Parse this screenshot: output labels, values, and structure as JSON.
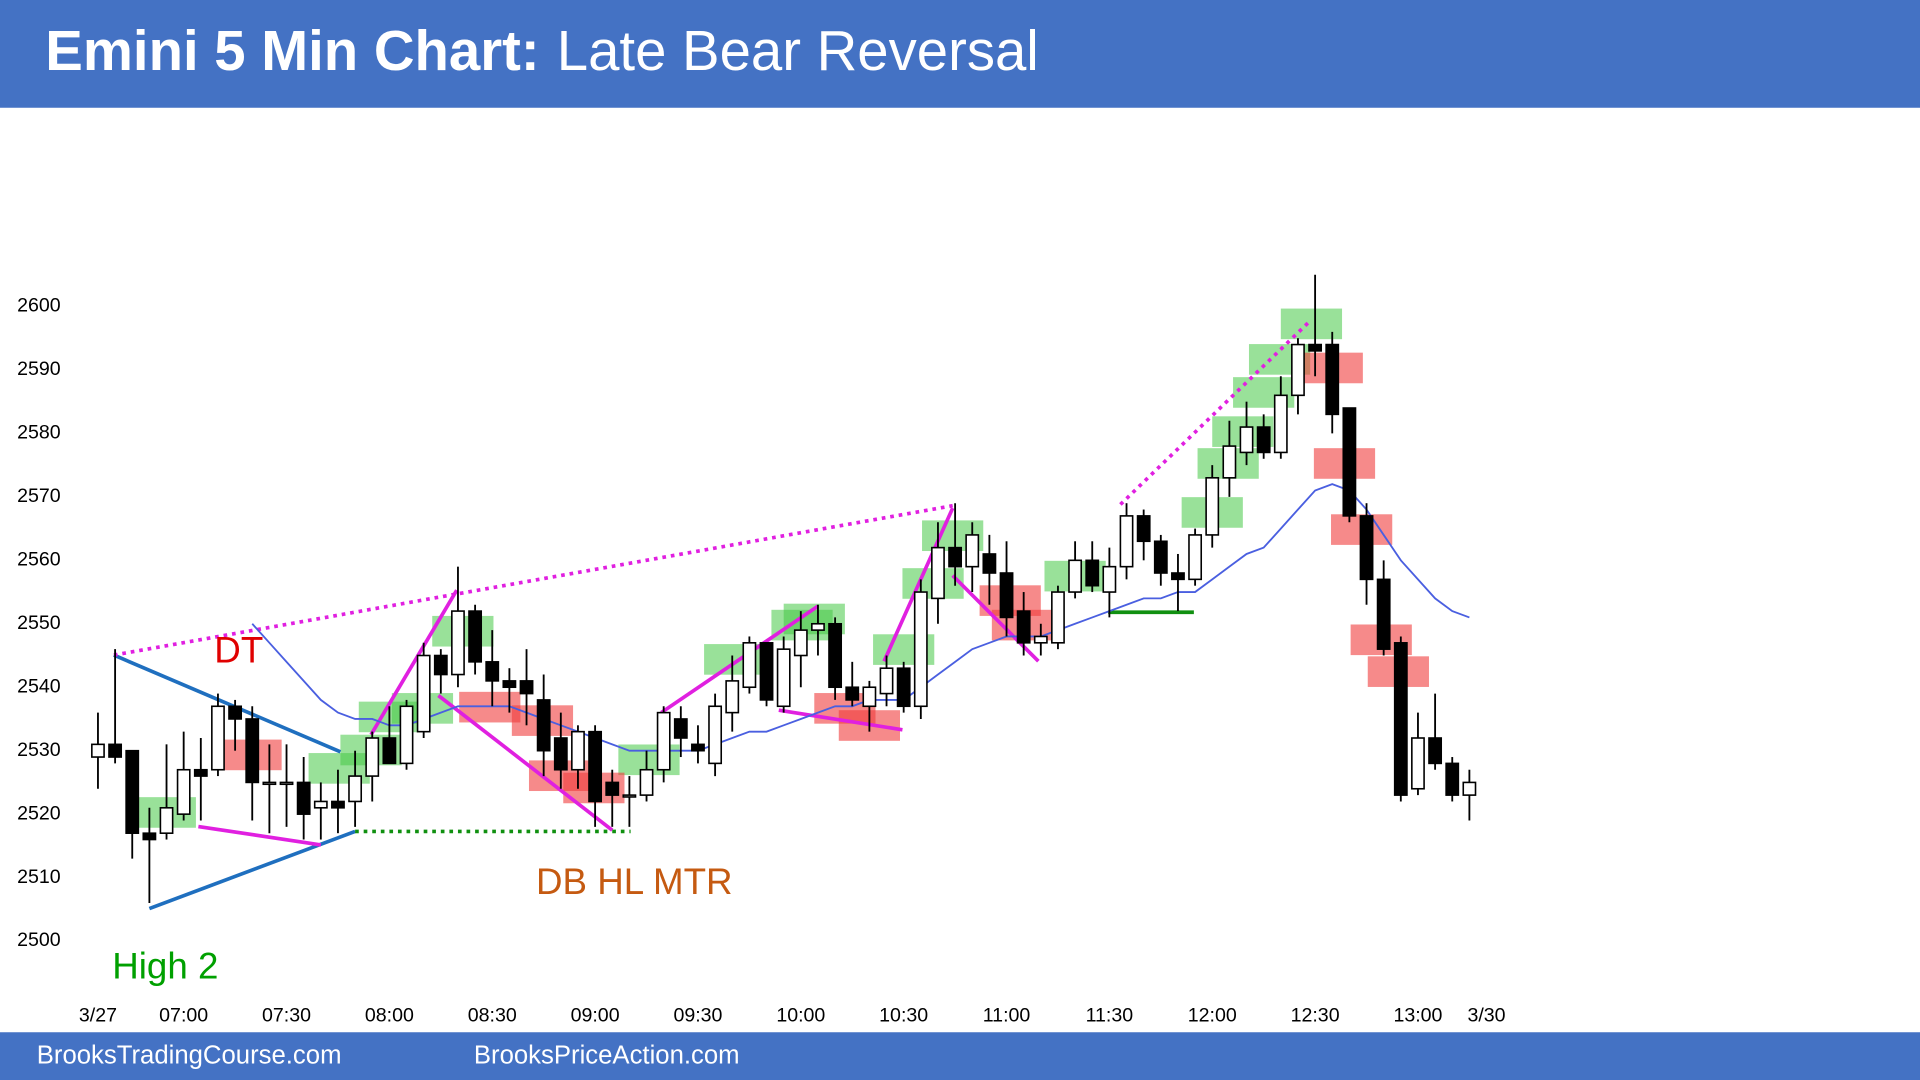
{
  "header": {
    "title_bold": "Emini 5 Min Chart:",
    "title_rest": "Late Bear Reversal"
  },
  "footer": {
    "left": "BrooksTradingCourse.com",
    "right": "BrooksPriceAction.com"
  },
  "chart_data": {
    "type": "candlestick",
    "categories": [
      "3/27",
      null,
      null,
      null,
      null,
      "07:00",
      null,
      null,
      null,
      null,
      null,
      "07:30",
      null,
      null,
      null,
      null,
      null,
      "08:00",
      null,
      null,
      null,
      null,
      null,
      "08:30",
      null,
      null,
      null,
      null,
      null,
      "09:00",
      null,
      null,
      null,
      null,
      null,
      "09:30",
      null,
      null,
      null,
      null,
      null,
      "10:00",
      null,
      null,
      null,
      null,
      null,
      "10:30",
      null,
      null,
      null,
      null,
      null,
      "11:00",
      null,
      null,
      null,
      null,
      null,
      "11:30",
      null,
      null,
      null,
      null,
      null,
      "12:00",
      null,
      null,
      null,
      null,
      null,
      "12:30",
      null,
      null,
      null,
      null,
      null,
      "13:00",
      null,
      null,
      null,
      "3/30"
    ],
    "open": [
      2529,
      2531,
      2530,
      2517,
      2517,
      2520,
      2527,
      2527,
      2537,
      2535,
      2525,
      2525,
      2525,
      2521,
      2522,
      2522,
      2526,
      2532,
      2528,
      2533,
      2545,
      2542,
      2552,
      2544,
      2541,
      2541,
      2538,
      2532,
      2527,
      2533,
      2525,
      2523,
      2523,
      2527,
      2535,
      2531,
      2528,
      2536,
      2540,
      2547,
      2537,
      2545,
      2549,
      2550,
      2540,
      2537,
      2539,
      2543,
      2537,
      2554,
      2562,
      2559,
      2561,
      2558,
      2552,
      2547,
      2547,
      2555,
      2560,
      2555,
      2559,
      2567,
      2563,
      2558,
      2557,
      2564,
      2573,
      2577,
      2581,
      2577,
      2586,
      2594,
      2594,
      2584,
      2567,
      2557,
      2547,
      2524,
      2532,
      2528,
      2523,
      null
    ],
    "high": [
      2536,
      2546,
      2530,
      2521,
      2531,
      2533,
      2532,
      2539,
      2538,
      2537,
      2531,
      2531,
      2529,
      2525,
      2527,
      2530,
      2533,
      2537,
      2538,
      2547,
      2546,
      2559,
      2553,
      2549,
      2543,
      2546,
      2542,
      2536,
      2534,
      2534,
      2527,
      2526,
      2530,
      2537,
      2537,
      2534,
      2539,
      2545,
      2548,
      2547,
      2548,
      2552,
      2553,
      2551,
      2544,
      2541,
      2545,
      2544,
      2557,
      2566,
      2569,
      2566,
      2564,
      2563,
      2555,
      2550,
      2556,
      2563,
      2563,
      2562,
      2569,
      2568,
      2564,
      2561,
      2565,
      2575,
      2582,
      2585,
      2583,
      2589,
      2595,
      2605,
      2596,
      2584,
      2569,
      2560,
      2548,
      2536,
      2539,
      2529,
      2527,
      null
    ],
    "low": [
      2524,
      2528,
      2513,
      2506,
      2516,
      2519,
      2519,
      2526,
      2530,
      2519,
      2517,
      2518,
      2516,
      2516,
      2517,
      2518,
      2522,
      2528,
      2527,
      2532,
      2539,
      2540,
      2542,
      2537,
      2536,
      2534,
      2526,
      2524,
      2524,
      2518,
      2518,
      2518,
      2522,
      2525,
      2529,
      2528,
      2526,
      2533,
      2539,
      2537,
      2536,
      2540,
      2545,
      2538,
      2537,
      2533,
      2537,
      2536,
      2535,
      2550,
      2556,
      2555,
      2553,
      2548,
      2545,
      2545,
      2546,
      2554,
      2555,
      2551,
      2557,
      2560,
      2556,
      2552,
      2556,
      2562,
      2570,
      2575,
      2576,
      2576,
      2583,
      2589,
      2580,
      2566,
      2553,
      2545,
      2522,
      2523,
      2527,
      2522,
      2519,
      null
    ],
    "close": [
      2531,
      2529,
      2517,
      2516,
      2521,
      2527,
      2526,
      2537,
      2535,
      2525,
      2525,
      2525,
      2520,
      2522,
      2521,
      2526,
      2532,
      2528,
      2537,
      2545,
      2542,
      2552,
      2544,
      2541,
      2540,
      2539,
      2530,
      2527,
      2533,
      2522,
      2523,
      2523,
      2527,
      2536,
      2532,
      2530,
      2537,
      2541,
      2547,
      2538,
      2546,
      2549,
      2550,
      2540,
      2538,
      2540,
      2543,
      2537,
      2555,
      2562,
      2559,
      2564,
      2558,
      2551,
      2547,
      2548,
      2555,
      2560,
      2556,
      2559,
      2567,
      2563,
      2558,
      2557,
      2564,
      2573,
      2578,
      2581,
      2577,
      2586,
      2594,
      2593,
      2583,
      2567,
      2557,
      2546,
      2523,
      2532,
      2528,
      2523,
      2525,
      null
    ],
    "moving_average": {
      "color": "#4a5fe0",
      "values": [
        null,
        null,
        null,
        null,
        null,
        null,
        null,
        null,
        null,
        2550,
        2547,
        2544,
        2541,
        2538,
        2536,
        2535,
        2535,
        2534,
        2534,
        2535,
        2536,
        2537,
        2537,
        2537,
        2537,
        2536,
        2535,
        2534,
        2533,
        2532,
        2531,
        2530,
        2530,
        2530,
        2530,
        2530,
        2531,
        2532,
        2533,
        2533,
        2534,
        2535,
        2536,
        2537,
        2537,
        2538,
        2538,
        2538,
        2540,
        2542,
        2544,
        2546,
        2547,
        2548,
        2548,
        2548,
        2549,
        2550,
        2551,
        2552,
        2553,
        2554,
        2554,
        2555,
        2555,
        2557,
        2559,
        2561,
        2562,
        2565,
        2568,
        2571,
        2572,
        2571,
        2568,
        2564,
        2560,
        2557,
        2554,
        2552,
        2551,
        null
      ]
    },
    "up_color": "#ffffff",
    "down_color": "#000000",
    "ylim": [
      2492,
      2629
    ],
    "yticks": [
      2500,
      2510,
      2520,
      2530,
      2540,
      2550,
      2560,
      2570,
      2580,
      2590,
      2600
    ],
    "grid": false,
    "annotations": [
      {
        "text": "DT",
        "color": "#e00000"
      },
      {
        "text": "DB HL MTR",
        "color": "#c55a11"
      },
      {
        "text": "High 2",
        "color": "#00a000"
      }
    ]
  }
}
